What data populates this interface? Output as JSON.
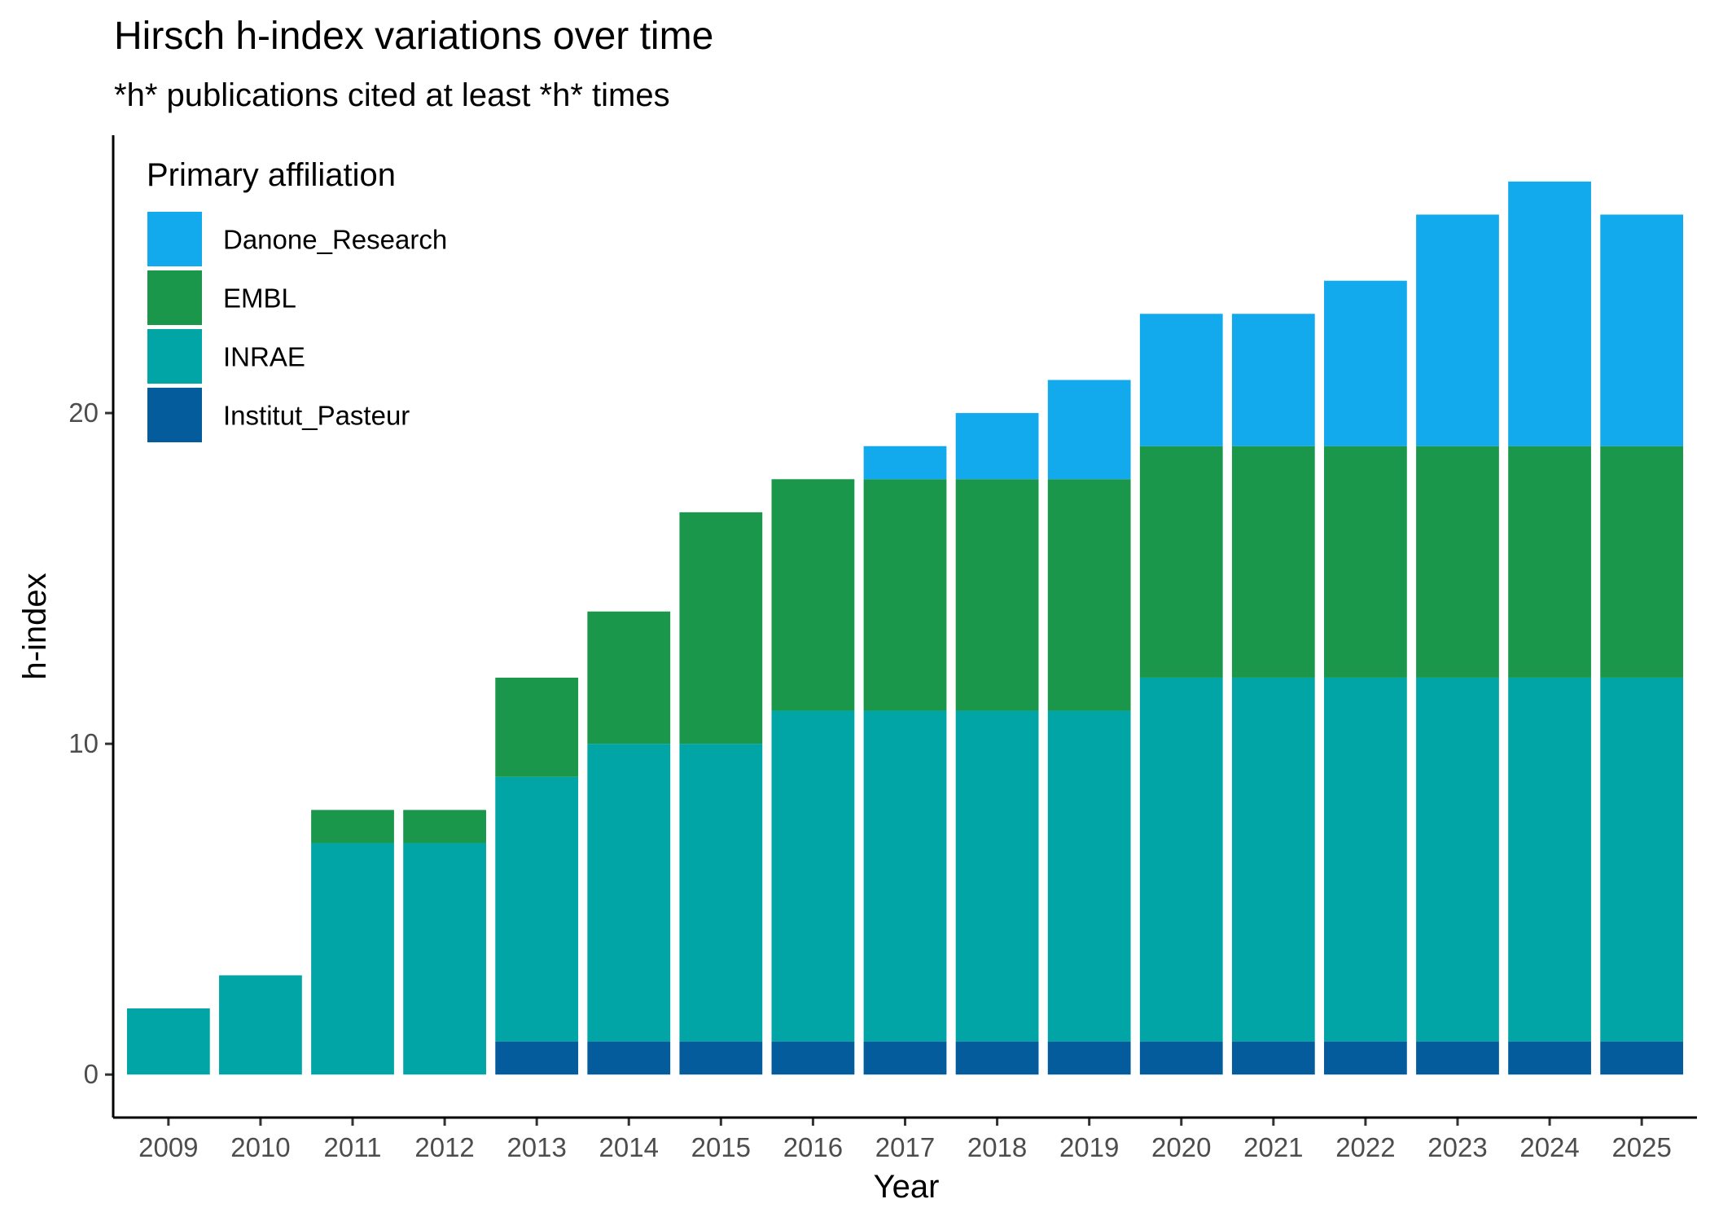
{
  "chart_data": {
    "type": "bar",
    "stacked": true,
    "title": "Hirsch h-index variations over time",
    "subtitle": "*h* publications cited at least *h* times",
    "xlabel": "Year",
    "ylabel": "h-index",
    "ylim": [
      -1.3,
      28.4
    ],
    "yticks": [
      0,
      10,
      20
    ],
    "grid": false,
    "legend": {
      "title": "Primary affiliation",
      "position": "top-left"
    },
    "categories": [
      "2009",
      "2010",
      "2011",
      "2012",
      "2013",
      "2014",
      "2015",
      "2016",
      "2017",
      "2018",
      "2019",
      "2020",
      "2021",
      "2022",
      "2023",
      "2024",
      "2025"
    ],
    "series": [
      {
        "name": "Institut_Pasteur",
        "color": "#045c9c",
        "values": [
          0,
          0,
          0,
          0,
          1,
          1,
          1,
          1,
          1,
          1,
          1,
          1,
          1,
          1,
          1,
          1,
          1
        ]
      },
      {
        "name": "INRAE",
        "color": "#02a5a6",
        "values": [
          2,
          3,
          7,
          7,
          8,
          9,
          9,
          10,
          10,
          10,
          10,
          11,
          11,
          11,
          11,
          11,
          11
        ]
      },
      {
        "name": "EMBL",
        "color": "#1a974b",
        "values": [
          0,
          0,
          1,
          1,
          3,
          4,
          7,
          7,
          7,
          7,
          7,
          7,
          7,
          7,
          7,
          7,
          7
        ]
      },
      {
        "name": "Danone_Research",
        "color": "#12aaec",
        "values": [
          0,
          0,
          0,
          0,
          0,
          0,
          0,
          0,
          1,
          2,
          3,
          4,
          4,
          5,
          7,
          8,
          7
        ]
      }
    ],
    "legend_order": [
      "Danone_Research",
      "EMBL",
      "INRAE",
      "Institut_Pasteur"
    ]
  }
}
